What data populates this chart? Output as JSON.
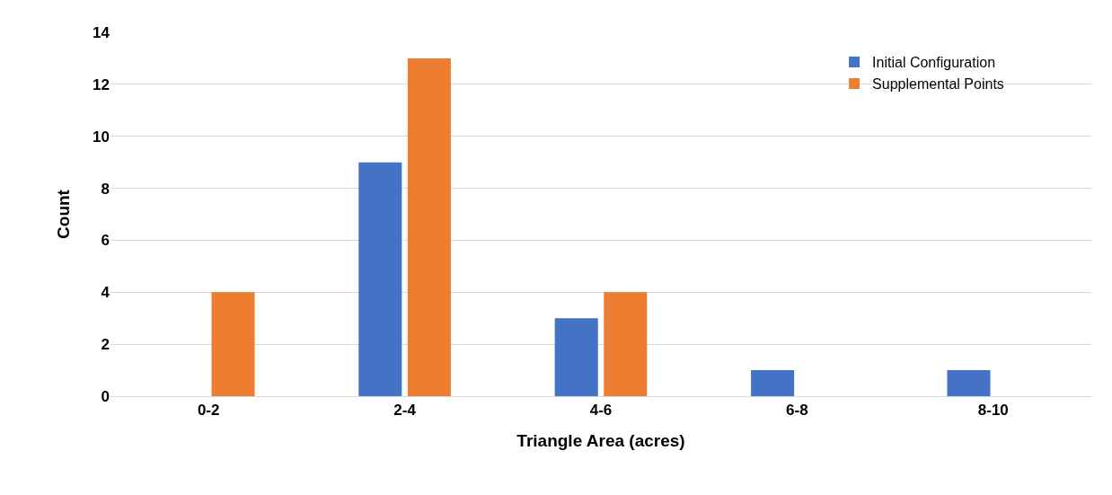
{
  "chart_data": {
    "type": "bar",
    "xlabel": "Triangle Area (acres)",
    "ylabel": "Count",
    "categories": [
      "0-2",
      "2-4",
      "4-6",
      "6-8",
      "8-10"
    ],
    "series": [
      {
        "name": "Initial Configuration",
        "color": "#4472c4",
        "values": [
          0,
          9,
          3,
          1,
          1
        ]
      },
      {
        "name": "Supplemental Points",
        "color": "#ed7d31",
        "values": [
          4,
          13,
          4,
          0,
          0
        ]
      }
    ],
    "ylim": [
      0,
      14
    ],
    "yticks": [
      0,
      2,
      4,
      6,
      8,
      10,
      12,
      14
    ],
    "grid": "y",
    "legend": "top right"
  }
}
